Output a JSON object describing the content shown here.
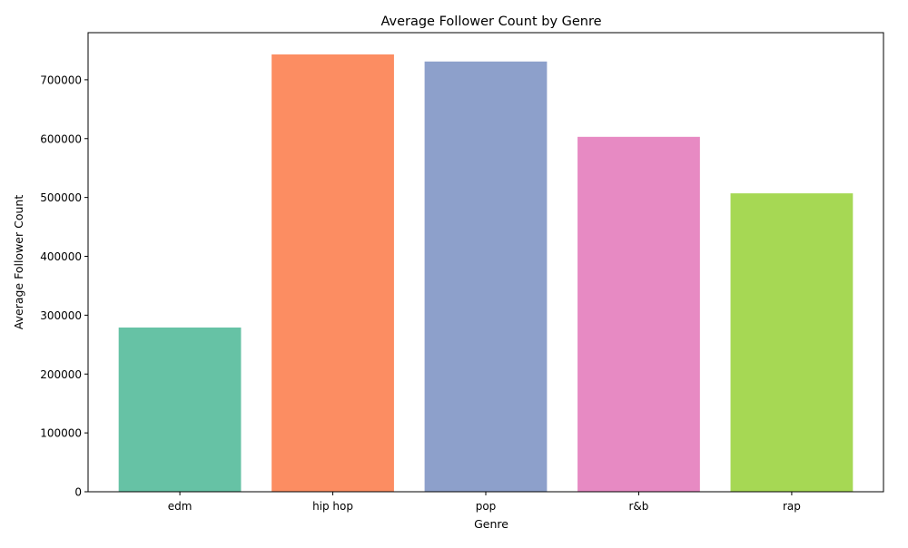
{
  "chart_data": {
    "type": "bar",
    "title": "Average Follower Count by Genre",
    "xlabel": "Genre",
    "ylabel": "Average Follower Count",
    "categories": [
      "edm",
      "hip hop",
      "pop",
      "r&b",
      "rap"
    ],
    "values": [
      279000,
      743000,
      731000,
      603000,
      507000
    ],
    "colors": [
      "#66c2a5",
      "#fc8d62",
      "#8da0cb",
      "#e78ac3",
      "#a6d854"
    ],
    "ylim": [
      0,
      780000
    ],
    "yticks": [
      0,
      100000,
      200000,
      300000,
      400000,
      500000,
      600000,
      700000
    ],
    "ytick_labels": [
      "0",
      "100000",
      "200000",
      "300000",
      "400000",
      "500000",
      "600000",
      "700000"
    ],
    "grid": false,
    "legend": "none"
  }
}
